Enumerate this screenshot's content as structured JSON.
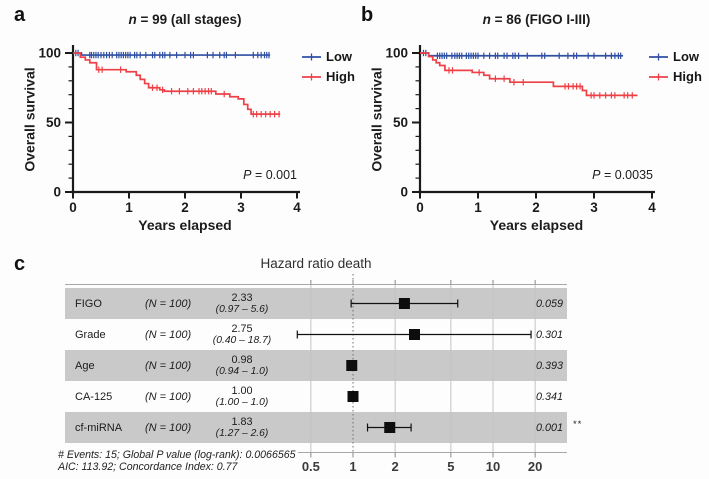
{
  "colors": {
    "low": "#2e4fa3",
    "high": "#ed4147",
    "band": "#c9c9c9",
    "grid": "#c3c3c3",
    "axis": "#1a1a1a",
    "ref_line": "#6e6e6e"
  },
  "panel_labels": {
    "a": "a",
    "b": "b",
    "c": "c"
  },
  "chart_data": [
    {
      "type": "line",
      "subtype": "kaplan-meier",
      "title_n": "n",
      "title": " = 99 (all stages)",
      "xlabel": "Years elapsed",
      "ylabel": "Overall survival",
      "xlim": [
        0,
        4
      ],
      "ylim": [
        0,
        105
      ],
      "xticks": [
        0,
        1,
        2,
        3,
        4
      ],
      "yticks": [
        0,
        50,
        100
      ],
      "y_minor_step": 10,
      "p_label": "P",
      "p_value": " = 0.001",
      "legend": [
        {
          "name": "Low",
          "color": "#2e4fa3"
        },
        {
          "name": "High",
          "color": "#ed4147"
        }
      ],
      "series": [
        {
          "name": "Low",
          "color": "#2e4fa3",
          "steps": [
            [
              0,
              100
            ],
            [
              0.15,
              98.5
            ],
            [
              3.52,
              98.5
            ]
          ],
          "censors": [
            0.05,
            0.09,
            0.3,
            0.33,
            0.37,
            0.41,
            0.45,
            0.5,
            0.55,
            0.6,
            0.65,
            0.7,
            0.78,
            0.82,
            0.86,
            0.9,
            0.94,
            0.98,
            1.02,
            1.1,
            1.14,
            1.2,
            1.3,
            1.42,
            1.46,
            1.55,
            1.6,
            1.64,
            1.73,
            1.85,
            2.0,
            2.1,
            2.15,
            2.4,
            2.5,
            2.62,
            2.7,
            2.74,
            2.9,
            3.22,
            3.3,
            3.36,
            3.42,
            3.46,
            3.5
          ]
        },
        {
          "name": "High",
          "color": "#ed4147",
          "steps": [
            [
              0,
              100
            ],
            [
              0.13,
              97
            ],
            [
              0.22,
              95
            ],
            [
              0.3,
              93
            ],
            [
              0.42,
              88
            ],
            [
              0.95,
              86.5
            ],
            [
              1.13,
              84
            ],
            [
              1.2,
              81
            ],
            [
              1.28,
              78
            ],
            [
              1.35,
              75
            ],
            [
              1.55,
              73.5
            ],
            [
              1.63,
              72.5
            ],
            [
              2.55,
              70.5
            ],
            [
              2.8,
              68.5
            ],
            [
              2.95,
              67
            ],
            [
              3.05,
              63
            ],
            [
              3.12,
              59.5
            ],
            [
              3.18,
              56
            ],
            [
              3.7,
              56
            ]
          ],
          "censors": [
            0.46,
            0.52,
            0.85,
            1.42,
            1.5,
            1.6,
            1.76,
            1.9,
            2.05,
            2.15,
            2.25,
            2.3,
            2.36,
            2.42,
            2.47,
            2.7,
            3.22,
            3.28,
            3.36,
            3.44,
            3.52,
            3.6,
            3.68
          ]
        }
      ]
    },
    {
      "type": "line",
      "subtype": "kaplan-meier",
      "title_n": "n",
      "title": " = 86 (FIGO I-III)",
      "xlabel": "Years elapsed",
      "ylabel": "Overall survival",
      "xlim": [
        0,
        4
      ],
      "ylim": [
        0,
        105
      ],
      "xticks": [
        0,
        1,
        2,
        3,
        4
      ],
      "yticks": [
        0,
        50,
        100
      ],
      "y_minor_step": 10,
      "p_label": "P",
      "p_value": " = 0.0035",
      "legend": [
        {
          "name": "Low",
          "color": "#2e4fa3"
        },
        {
          "name": "High",
          "color": "#ed4147"
        }
      ],
      "series": [
        {
          "name": "Low",
          "color": "#2e4fa3",
          "steps": [
            [
              0,
              100
            ],
            [
              0.15,
              98
            ],
            [
              3.5,
              98
            ]
          ],
          "censors": [
            0.06,
            0.1,
            0.3,
            0.34,
            0.38,
            0.42,
            0.46,
            0.55,
            0.6,
            0.64,
            0.68,
            0.72,
            0.8,
            0.84,
            0.88,
            0.92,
            0.96,
            1.0,
            1.1,
            1.2,
            1.3,
            1.34,
            1.45,
            1.5,
            1.6,
            1.64,
            1.7,
            1.85,
            2.1,
            2.15,
            2.4,
            2.55,
            2.65,
            2.7,
            2.9,
            3.0,
            3.2,
            3.3,
            3.36,
            3.42,
            3.46
          ]
        },
        {
          "name": "High",
          "color": "#ed4147",
          "steps": [
            [
              0,
              100
            ],
            [
              0.15,
              97.5
            ],
            [
              0.22,
              95
            ],
            [
              0.28,
              93
            ],
            [
              0.34,
              91
            ],
            [
              0.43,
              87.5
            ],
            [
              0.9,
              86
            ],
            [
              1.1,
              84
            ],
            [
              1.2,
              81.5
            ],
            [
              1.55,
              79
            ],
            [
              2.3,
              76
            ],
            [
              2.8,
              73
            ],
            [
              2.87,
              69.5
            ],
            [
              3.75,
              69.5
            ]
          ],
          "censors": [
            0.5,
            0.56,
            1.02,
            1.3,
            1.45,
            1.62,
            1.78,
            2.5,
            2.56,
            2.64,
            2.7,
            2.76,
            2.95,
            3.0,
            3.1,
            3.2,
            3.3,
            3.36,
            3.52,
            3.58,
            3.66
          ]
        }
      ]
    },
    {
      "type": "forest",
      "title": "Hazard ratio death",
      "scale": "log",
      "ref_line": 1,
      "xticks": [
        0.5,
        1,
        2,
        5,
        10,
        20
      ],
      "rows": [
        {
          "label": "FIGO",
          "n": "(N = 100)",
          "estimate": "2.33",
          "ci": "(0.97 – 5.6)",
          "hr": 2.33,
          "lo": 0.97,
          "hi": 5.6,
          "p": "0.059",
          "sig": ""
        },
        {
          "label": "Grade",
          "n": "(N = 100)",
          "estimate": "2.75",
          "ci": "(0.40 – 18.7)",
          "hr": 2.75,
          "lo": 0.4,
          "hi": 18.7,
          "p": "0.301",
          "sig": ""
        },
        {
          "label": "Age",
          "n": "(N = 100)",
          "estimate": "0.98",
          "ci": "(0.94 – 1.0)",
          "hr": 0.98,
          "lo": 0.94,
          "hi": 1.0,
          "p": "0.393",
          "sig": ""
        },
        {
          "label": "CA-125",
          "n": "(N = 100)",
          "estimate": "1.00",
          "ci": "(1.00 – 1.0)",
          "hr": 1.0,
          "lo": 1.0,
          "hi": 1.0,
          "p": "0.341",
          "sig": ""
        },
        {
          "label": "cf-miRNA",
          "n": "(N = 100)",
          "estimate": "1.83",
          "ci": "(1.27 – 2.6)",
          "hr": 1.83,
          "lo": 1.27,
          "hi": 2.6,
          "p": "0.001",
          "sig": "**"
        }
      ],
      "footnote1": "# Events: 15; Global P value (log-rank): 0.0066565",
      "footnote2": "AIC: 113.92; Concordance Index: 0.77"
    }
  ]
}
